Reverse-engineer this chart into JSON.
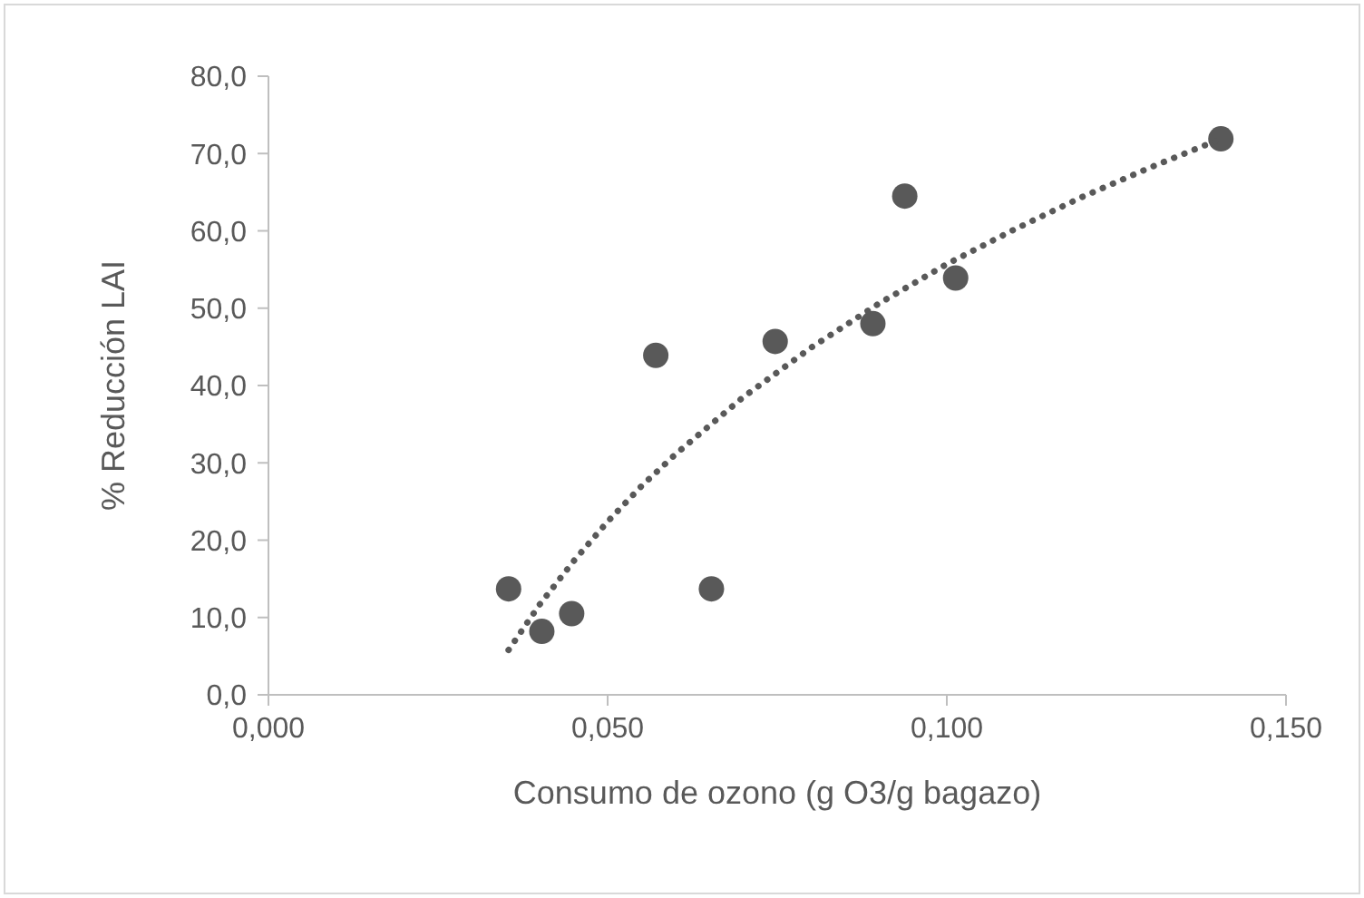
{
  "chart_data": {
    "type": "scatter",
    "xlabel": "Consumo de ozono (g O3/g bagazo)",
    "ylabel": "% Reducción LAI",
    "xlim": [
      0,
      0.15
    ],
    "xticks": [
      {
        "value": 0,
        "label": "0,000"
      },
      {
        "value": 0.05,
        "label": "0,050"
      },
      {
        "value": 0.1,
        "label": "0,100"
      },
      {
        "value": 0.15,
        "label": "0,150"
      }
    ],
    "ylim": [
      0,
      80
    ],
    "yticks": [
      {
        "value": 0,
        "label": "0,0"
      },
      {
        "value": 10,
        "label": "10,0"
      },
      {
        "value": 20,
        "label": "20,0"
      },
      {
        "value": 30,
        "label": "30,0"
      },
      {
        "value": 40,
        "label": "40,0"
      },
      {
        "value": 50,
        "label": "50,0"
      },
      {
        "value": 60,
        "label": "60,0"
      },
      {
        "value": 70,
        "label": "70,0"
      },
      {
        "value": 80,
        "label": "80,0"
      }
    ],
    "grid": false,
    "legend": false,
    "series": [
      {
        "type": "scatter",
        "color": "#595959",
        "marker": "circle",
        "x": [
          0.0354,
          0.0403,
          0.0447,
          0.0571,
          0.0653,
          0.0747,
          0.0891,
          0.0938,
          0.1013,
          0.1404
        ],
        "values": [
          13.7,
          8.2,
          10.5,
          43.9,
          13.7,
          45.7,
          48.0,
          64.5,
          53.9,
          71.9
        ]
      },
      {
        "type": "line",
        "color": "#595959",
        "line_style": "dotted",
        "marker": "none",
        "x": [
          0.0354,
          0.04,
          0.045,
          0.05,
          0.055,
          0.06,
          0.07,
          0.08,
          0.09,
          0.1,
          0.11,
          0.12,
          0.13,
          0.1404
        ],
        "values": [
          5.8,
          11.7,
          17.3,
          22.4,
          27.0,
          31.1,
          38.5,
          44.9,
          50.6,
          55.7,
          60.2,
          64.4,
          68.2,
          71.9
        ]
      }
    ]
  }
}
